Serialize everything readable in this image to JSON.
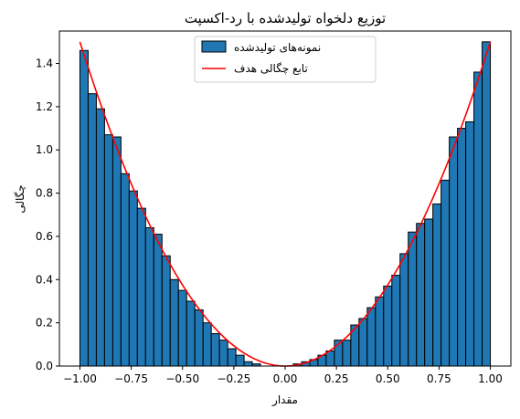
{
  "chart_data": {
    "type": "bar",
    "title": "توزیع دلخواه تولیدشده با رد-اکسپت",
    "xlabel": "مقدار",
    "ylabel": "چگالی",
    "xlim": [
      -1.1,
      1.1
    ],
    "ylim": [
      0,
      1.55
    ],
    "xticks": [
      -1.0,
      -0.75,
      -0.5,
      -0.25,
      0.0,
      0.25,
      0.5,
      0.75,
      1.0
    ],
    "xtick_labels": [
      "−1.00",
      "−0.75",
      "−0.50",
      "−0.25",
      "0.00",
      "0.25",
      "0.50",
      "0.75",
      "1.00"
    ],
    "yticks": [
      0.0,
      0.2,
      0.4,
      0.6,
      0.8,
      1.0,
      1.2,
      1.4
    ],
    "ytick_labels": [
      "0.0",
      "0.2",
      "0.4",
      "0.6",
      "0.8",
      "1.0",
      "1.2",
      "1.4"
    ],
    "grid": false,
    "legend_position": "top-center",
    "histogram": {
      "name": "نمونه‌های تولیدشده",
      "color": "#1f77b4",
      "edgecolor": "#000000",
      "bin_start": -1.0,
      "bin_width": 0.04,
      "values": [
        1.46,
        1.26,
        1.19,
        1.07,
        1.06,
        0.89,
        0.81,
        0.73,
        0.64,
        0.61,
        0.51,
        0.4,
        0.35,
        0.3,
        0.26,
        0.2,
        0.15,
        0.12,
        0.08,
        0.05,
        0.02,
        0.01,
        0.0,
        0.0,
        0.0,
        0.0,
        0.01,
        0.02,
        0.03,
        0.05,
        0.07,
        0.12,
        0.12,
        0.19,
        0.22,
        0.27,
        0.32,
        0.37,
        0.42,
        0.52,
        0.62,
        0.66,
        0.68,
        0.75,
        0.86,
        1.06,
        1.1,
        1.13,
        1.36,
        1.5
      ]
    },
    "line": {
      "name": "تابع چگالی هدف",
      "color": "#ff0000",
      "formula": "1.5 * x^2",
      "x_range": [
        -1.0,
        1.0
      ]
    }
  }
}
